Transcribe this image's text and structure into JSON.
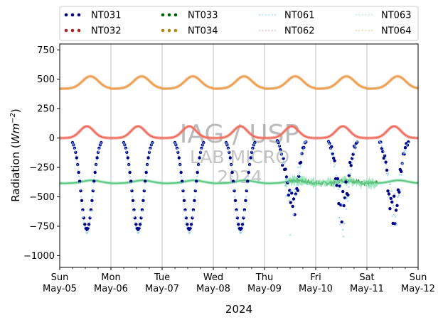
{
  "chart_data": {
    "type": "scatter",
    "xlabel": "2024",
    "ylabel_main": "Radiation (",
    "ylabel_unit": "Wm",
    "ylabel_exp": "−2",
    "ylabel_close": ")",
    "xlim": [
      0,
      7
    ],
    "ylim": [
      -1100,
      800
    ],
    "yticks": [
      {
        "value": 750,
        "label": "750"
      },
      {
        "value": 500,
        "label": "500"
      },
      {
        "value": 250,
        "label": "250"
      },
      {
        "value": 0,
        "label": "0"
      },
      {
        "value": -250,
        "label": "−250"
      },
      {
        "value": -500,
        "label": "−500"
      },
      {
        "value": -750,
        "label": "−750"
      },
      {
        "value": -1000,
        "label": "−1000"
      }
    ],
    "xticks": [
      {
        "value": 0,
        "day": "Sun",
        "date": "May-05"
      },
      {
        "value": 1,
        "day": "Mon",
        "date": "May-06"
      },
      {
        "value": 2,
        "day": "Tue",
        "date": "May-07"
      },
      {
        "value": 3,
        "day": "Wed",
        "date": "May-08"
      },
      {
        "value": 4,
        "day": "Thu",
        "date": "May-09"
      },
      {
        "value": 5,
        "day": "Fri",
        "date": "May-10"
      },
      {
        "value": 6,
        "day": "Sat",
        "date": "May-11"
      },
      {
        "value": 7,
        "day": "Sun",
        "date": "May-12"
      }
    ],
    "grid_x": true,
    "legend_position": "top",
    "legend": [
      {
        "name": "NT031",
        "color": "#00007f",
        "style": "dots"
      },
      {
        "name": "NT032",
        "color": "#b22222",
        "style": "dots"
      },
      {
        "name": "NT033",
        "color": "#006400",
        "style": "dots"
      },
      {
        "name": "NT034",
        "color": "#b8860b",
        "style": "dots"
      },
      {
        "name": "NT061",
        "color": "#b3ecf7",
        "style": "faint"
      },
      {
        "name": "NT062",
        "color": "#f4cccc",
        "style": "faint"
      },
      {
        "name": "NT063",
        "color": "#c8f4dc",
        "style": "faint"
      },
      {
        "name": "NT064",
        "color": "#f4dcb8",
        "style": "faint"
      }
    ],
    "series": [
      {
        "name": "NT034",
        "color": "#b8860b",
        "baseline": 420,
        "peak": 525,
        "peak_hour": 0.6,
        "width": 0.22
      },
      {
        "name": "NT064",
        "color": "#f4a460",
        "baseline": 420,
        "peak": 525,
        "peak_hour": 0.6,
        "width": 0.22
      },
      {
        "name": "NT032",
        "color": "#b22222",
        "baseline": 0,
        "peak": 100,
        "peak_hour": 0.53,
        "width": 0.19
      },
      {
        "name": "NT062",
        "color": "#fa8072",
        "baseline": 0,
        "peak": 100,
        "peak_hour": 0.53,
        "width": 0.19
      },
      {
        "name": "NT033",
        "color": "#006400",
        "baseline": -385,
        "peak": -360,
        "peak_hour": 0.62,
        "width": 0.25
      },
      {
        "name": "NT063",
        "color": "#7fe0a8",
        "baseline": -385,
        "peak": -360,
        "peak_hour": 0.62,
        "width": 0.25
      },
      {
        "name": "NT031",
        "color": "#00008b",
        "min": -780,
        "peak_hour": 0.53,
        "width": 0.19
      },
      {
        "name": "NT061",
        "color": "#87ceeb",
        "min": -810,
        "peak_hour": 0.53,
        "width": 0.19
      }
    ]
  },
  "watermark": {
    "line1": "IAG / USP",
    "line2": "LAB MICRO",
    "line3": "2024"
  }
}
